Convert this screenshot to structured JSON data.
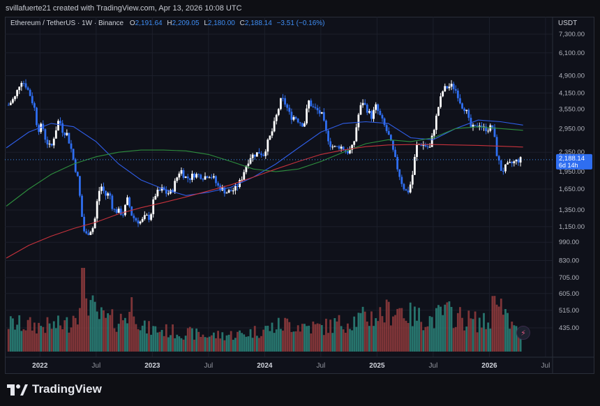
{
  "header": {
    "attribution": "svillafuerte21 created with TradingView.com, Apr 13, 2026 10:08 UTC"
  },
  "legend": {
    "symbol": "Ethereum / TetherUS · 1W · Binance",
    "o_label": "O",
    "o_value": "2,191.64",
    "h_label": "H",
    "h_value": "2,209.05",
    "l_label": "L",
    "l_value": "2,180.00",
    "c_label": "C",
    "c_value": "2,188.14",
    "change": "−3.51 (−0.16%)"
  },
  "currency": "USDT",
  "brand": {
    "name": "TradingView"
  },
  "price_badge": {
    "price": "2,188.14",
    "countdown": "6d 14h"
  },
  "colors": {
    "background": "#0f111a",
    "up": "#ffffff",
    "down": "#2f6ef0",
    "ma_fast": "#2f5ee8",
    "ma_mid": "#2e8f3e",
    "ma_slow": "#c8323c",
    "vol_up": "#2a7f77",
    "vol_down": "#8c3a3c",
    "grid": "#1c1f2b"
  },
  "chart_data": {
    "type": "candlestick",
    "price_scale": "log",
    "price_axis_ticks": [
      7300,
      6100,
      4900,
      4150,
      3550,
      2950,
      2350,
      1950,
      1650,
      1350,
      1150,
      990,
      830,
      705,
      605,
      515,
      435
    ],
    "price_axis_labels": [
      "7,300.00",
      "6,100.00",
      "4,900.00",
      "4,150.00",
      "3,550.00",
      "2,950.00",
      "2,350.00",
      "1,950.00",
      "1,650.00",
      "1,350.00",
      "1,150.00",
      "990.00",
      "830.00",
      "705.00",
      "605.00",
      "515.00",
      "435.00"
    ],
    "time_axis_labels": [
      {
        "label": "2022",
        "t": 0,
        "bold": true
      },
      {
        "label": "Jul",
        "t": 0.5,
        "bold": false
      },
      {
        "label": "2023",
        "t": 1,
        "bold": true
      },
      {
        "label": "Jul",
        "t": 1.5,
        "bold": false
      },
      {
        "label": "2024",
        "t": 2,
        "bold": true
      },
      {
        "label": "Jul",
        "t": 2.5,
        "bold": false
      },
      {
        "label": "2025",
        "t": 3,
        "bold": true
      },
      {
        "label": "Jul",
        "t": 3.5,
        "bold": false
      },
      {
        "label": "2026",
        "t": 4,
        "bold": true
      },
      {
        "label": "Jul",
        "t": 4.5,
        "bold": false
      }
    ],
    "x_range": [
      -0.3,
      4.55
    ],
    "y_range": [
      1180,
      8000
    ],
    "close_path": [
      [
        -0.28,
        3700
      ],
      [
        -0.22,
        4000
      ],
      [
        -0.17,
        4700
      ],
      [
        -0.13,
        4500
      ],
      [
        -0.09,
        4100
      ],
      [
        -0.05,
        3600
      ],
      [
        -0.02,
        2900
      ],
      [
        0.02,
        3050
      ],
      [
        0.05,
        2650
      ],
      [
        0.08,
        2500
      ],
      [
        0.1,
        2450
      ],
      [
        0.13,
        2800
      ],
      [
        0.17,
        3250
      ],
      [
        0.2,
        2900
      ],
      [
        0.24,
        2800
      ],
      [
        0.28,
        2400
      ],
      [
        0.31,
        2050
      ],
      [
        0.34,
        1800
      ],
      [
        0.37,
        1300
      ],
      [
        0.4,
        1050
      ],
      [
        0.44,
        1100
      ],
      [
        0.48,
        1150
      ],
      [
        0.52,
        1600
      ],
      [
        0.55,
        1700
      ],
      [
        0.58,
        1550
      ],
      [
        0.62,
        1580
      ],
      [
        0.65,
        1350
      ],
      [
        0.7,
        1330
      ],
      [
        0.74,
        1300
      ],
      [
        0.78,
        1500
      ],
      [
        0.82,
        1270
      ],
      [
        0.86,
        1220
      ],
      [
        0.9,
        1200
      ],
      [
        0.94,
        1270
      ],
      [
        0.98,
        1250
      ],
      [
        1.02,
        1550
      ],
      [
        1.05,
        1600
      ],
      [
        1.09,
        1650
      ],
      [
        1.13,
        1580
      ],
      [
        1.17,
        1600
      ],
      [
        1.21,
        1800
      ],
      [
        1.25,
        2000
      ],
      [
        1.29,
        1850
      ],
      [
        1.33,
        1830
      ],
      [
        1.37,
        1900
      ],
      [
        1.42,
        1880
      ],
      [
        1.46,
        1850
      ],
      [
        1.5,
        1900
      ],
      [
        1.54,
        1850
      ],
      [
        1.58,
        1700
      ],
      [
        1.62,
        1650
      ],
      [
        1.66,
        1600
      ],
      [
        1.7,
        1620
      ],
      [
        1.74,
        1650
      ],
      [
        1.79,
        1800
      ],
      [
        1.83,
        2050
      ],
      [
        1.87,
        2250
      ],
      [
        1.91,
        2300
      ],
      [
        1.95,
        2350
      ],
      [
        1.99,
        2300
      ],
      [
        2.03,
        2600
      ],
      [
        2.07,
        2900
      ],
      [
        2.11,
        3400
      ],
      [
        2.15,
        3950
      ],
      [
        2.19,
        3700
      ],
      [
        2.23,
        3300
      ],
      [
        2.27,
        3300
      ],
      [
        2.31,
        3150
      ],
      [
        2.35,
        3050
      ],
      [
        2.39,
        3850
      ],
      [
        2.43,
        3600
      ],
      [
        2.47,
        3500
      ],
      [
        2.51,
        3350
      ],
      [
        2.55,
        2800
      ],
      [
        2.59,
        2500
      ],
      [
        2.63,
        2450
      ],
      [
        2.67,
        2500
      ],
      [
        2.71,
        2400
      ],
      [
        2.75,
        2350
      ],
      [
        2.79,
        2500
      ],
      [
        2.83,
        3300
      ],
      [
        2.87,
        3850
      ],
      [
        2.91,
        3550
      ],
      [
        2.95,
        3300
      ],
      [
        2.99,
        3650
      ],
      [
        3.03,
        3300
      ],
      [
        3.07,
        3000
      ],
      [
        3.11,
        2700
      ],
      [
        3.15,
        2300
      ],
      [
        3.19,
        1950
      ],
      [
        3.23,
        1700
      ],
      [
        3.27,
        1580
      ],
      [
        3.31,
        1800
      ],
      [
        3.35,
        2500
      ],
      [
        3.39,
        2550
      ],
      [
        3.43,
        2500
      ],
      [
        3.47,
        2450
      ],
      [
        3.51,
        3000
      ],
      [
        3.55,
        3700
      ],
      [
        3.59,
        4300
      ],
      [
        3.63,
        4400
      ],
      [
        3.67,
        4450
      ],
      [
        3.71,
        4200
      ],
      [
        3.75,
        3700
      ],
      [
        3.79,
        3550
      ],
      [
        3.83,
        3000
      ],
      [
        3.87,
        2950
      ],
      [
        3.91,
        3100
      ],
      [
        3.95,
        2950
      ],
      [
        3.99,
        2950
      ],
      [
        4.03,
        3000
      ],
      [
        4.07,
        2250
      ],
      [
        4.11,
        1950
      ],
      [
        4.15,
        2050
      ],
      [
        4.19,
        2100
      ],
      [
        4.23,
        2150
      ],
      [
        4.27,
        2188
      ]
    ],
    "moving_averages": [
      {
        "color_key": "ma_fast",
        "points": [
          [
            -0.3,
            2450
          ],
          [
            -0.1,
            2850
          ],
          [
            0.1,
            3100
          ],
          [
            0.3,
            3000
          ],
          [
            0.5,
            2600
          ],
          [
            0.7,
            2100
          ],
          [
            0.9,
            1800
          ],
          [
            1.1,
            1650
          ],
          [
            1.3,
            1550
          ],
          [
            1.5,
            1600
          ],
          [
            1.7,
            1680
          ],
          [
            1.9,
            1850
          ],
          [
            2.1,
            2100
          ],
          [
            2.3,
            2450
          ],
          [
            2.5,
            2850
          ],
          [
            2.7,
            3100
          ],
          [
            2.9,
            3150
          ],
          [
            3.1,
            3100
          ],
          [
            3.3,
            2700
          ],
          [
            3.5,
            2650
          ],
          [
            3.7,
            2950
          ],
          [
            3.9,
            3200
          ],
          [
            4.1,
            3150
          ],
          [
            4.3,
            3050
          ]
        ]
      },
      {
        "color_key": "ma_mid",
        "points": [
          [
            -0.3,
            1400
          ],
          [
            -0.1,
            1650
          ],
          [
            0.1,
            1900
          ],
          [
            0.3,
            2100
          ],
          [
            0.5,
            2250
          ],
          [
            0.7,
            2350
          ],
          [
            0.9,
            2400
          ],
          [
            1.1,
            2400
          ],
          [
            1.3,
            2380
          ],
          [
            1.5,
            2300
          ],
          [
            1.7,
            2150
          ],
          [
            1.9,
            2000
          ],
          [
            2.1,
            1950
          ],
          [
            2.3,
            2000
          ],
          [
            2.5,
            2150
          ],
          [
            2.7,
            2350
          ],
          [
            2.9,
            2550
          ],
          [
            3.1,
            2650
          ],
          [
            3.3,
            2600
          ],
          [
            3.5,
            2700
          ],
          [
            3.7,
            2950
          ],
          [
            3.9,
            3000
          ],
          [
            4.1,
            2950
          ],
          [
            4.3,
            2900
          ]
        ]
      },
      {
        "color_key": "ma_slow",
        "points": [
          [
            -0.3,
            850
          ],
          [
            -0.1,
            960
          ],
          [
            0.1,
            1050
          ],
          [
            0.3,
            1130
          ],
          [
            0.5,
            1200
          ],
          [
            0.7,
            1300
          ],
          [
            0.9,
            1380
          ],
          [
            1.1,
            1450
          ],
          [
            1.3,
            1530
          ],
          [
            1.5,
            1620
          ],
          [
            1.7,
            1720
          ],
          [
            1.9,
            1850
          ],
          [
            2.1,
            2000
          ],
          [
            2.3,
            2150
          ],
          [
            2.5,
            2300
          ],
          [
            2.7,
            2400
          ],
          [
            2.9,
            2480
          ],
          [
            3.1,
            2520
          ],
          [
            3.3,
            2530
          ],
          [
            3.5,
            2530
          ],
          [
            3.7,
            2520
          ],
          [
            3.9,
            2510
          ],
          [
            4.1,
            2490
          ],
          [
            4.3,
            2470
          ]
        ]
      }
    ],
    "volume_profile": [
      [
        -0.28,
        0.35
      ],
      [
        -0.1,
        0.33
      ],
      [
        0.1,
        0.32
      ],
      [
        0.25,
        0.35
      ],
      [
        0.34,
        0.55
      ],
      [
        0.37,
        1.0
      ],
      [
        0.42,
        0.7
      ],
      [
        0.5,
        0.45
      ],
      [
        0.6,
        0.4
      ],
      [
        0.7,
        0.38
      ],
      [
        0.8,
        0.5
      ],
      [
        0.83,
        0.65
      ],
      [
        0.9,
        0.3
      ],
      [
        1.0,
        0.28
      ],
      [
        1.2,
        0.25
      ],
      [
        1.5,
        0.2
      ],
      [
        1.8,
        0.22
      ],
      [
        2.0,
        0.28
      ],
      [
        2.2,
        0.35
      ],
      [
        2.5,
        0.3
      ],
      [
        2.8,
        0.4
      ],
      [
        3.0,
        0.45
      ],
      [
        3.1,
        0.5
      ],
      [
        3.2,
        0.55
      ],
      [
        3.3,
        0.45
      ],
      [
        3.5,
        0.4
      ],
      [
        3.6,
        0.5
      ],
      [
        3.8,
        0.4
      ],
      [
        4.0,
        0.35
      ],
      [
        4.07,
        0.9
      ],
      [
        4.12,
        0.45
      ],
      [
        4.25,
        0.25
      ]
    ],
    "last_price": 2188.14
  }
}
